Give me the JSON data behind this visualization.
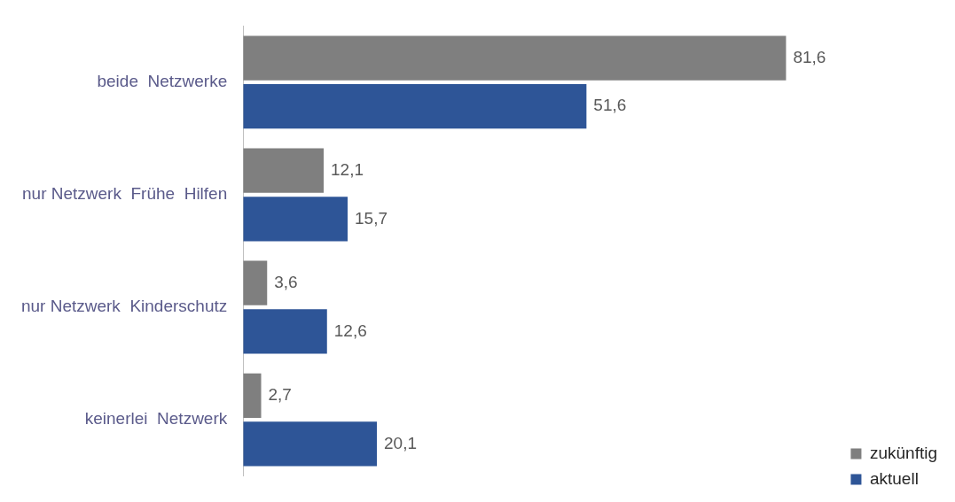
{
  "chart_data": {
    "type": "bar",
    "orientation": "horizontal",
    "categories": [
      "beide  Netzwerke",
      "nur Netzwerk  Frühe  Hilfen",
      "nur Netzwerk  Kinderschutz",
      "keinerlei  Netzwerk"
    ],
    "series": [
      {
        "name": "zukünftig",
        "color": "#7f7f7f",
        "values": [
          81.6,
          12.1,
          3.6,
          2.7
        ],
        "value_labels": [
          "81,6",
          "12,1",
          "3,6",
          "2,7"
        ]
      },
      {
        "name": "aktuell",
        "color": "#2e5597",
        "values": [
          51.6,
          15.7,
          12.6,
          20.1
        ],
        "value_labels": [
          "51,6",
          "15,7",
          "12,6",
          "20,1"
        ]
      }
    ],
    "grid": false,
    "legend": "bottom right",
    "tick_labels": "y"
  }
}
